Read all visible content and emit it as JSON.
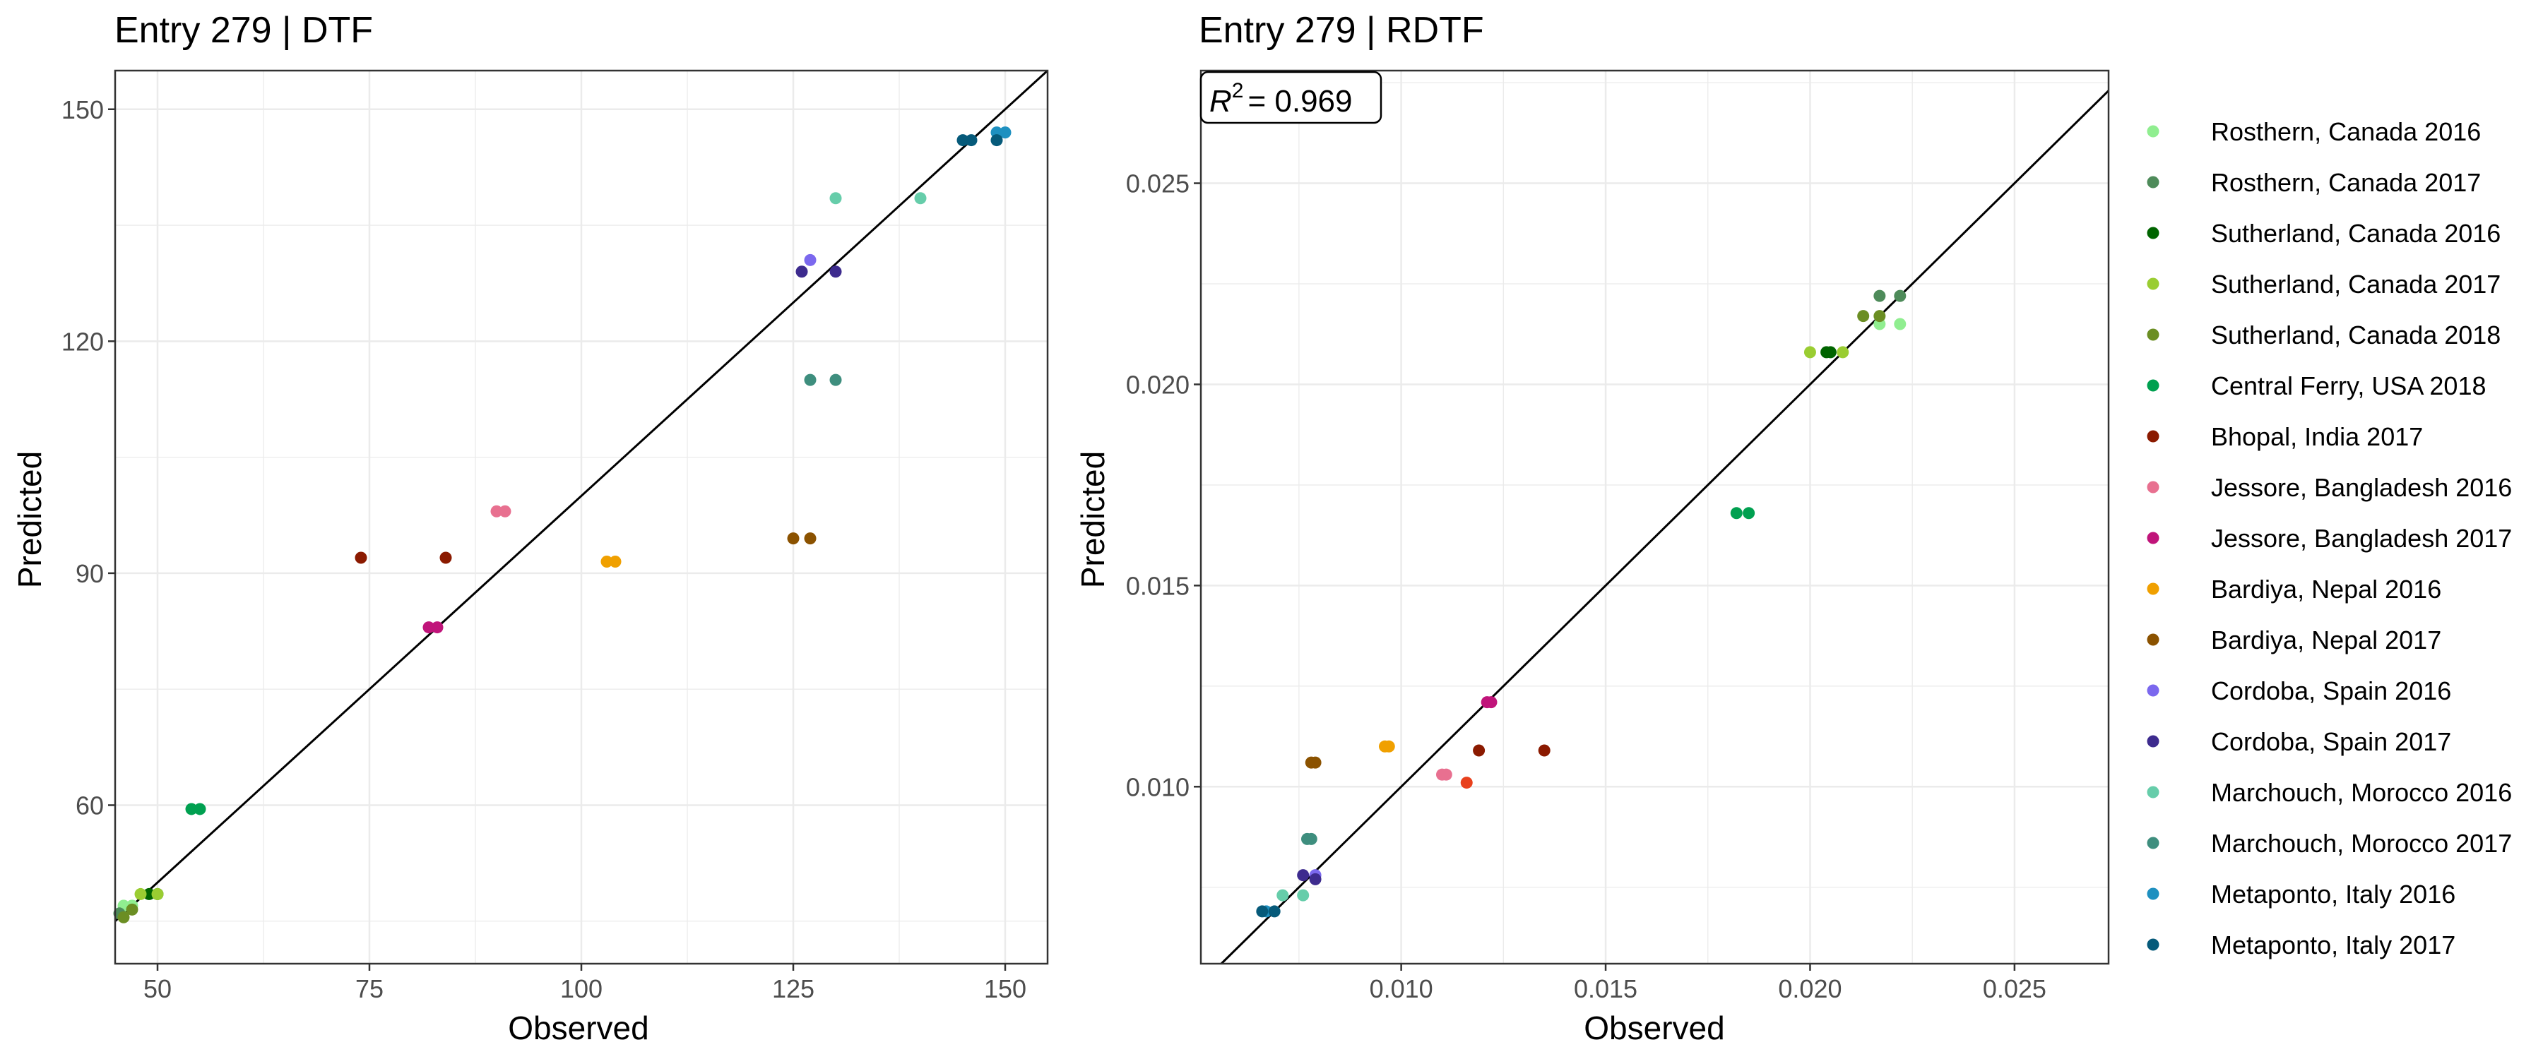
{
  "colors": {
    "series": [
      "#90EE90",
      "#4E8B5A",
      "#006400",
      "#9ACD32",
      "#6B8E23",
      "#00A050",
      "#8B1A00",
      "#E87090",
      "#C0147A",
      "#F0A000",
      "#8B5200",
      "#7B68EE",
      "#3D2B8E",
      "#66CDAA",
      "#3E8E7E",
      "#1E90C0",
      "#065A7A"
    ],
    "extra_point": "#E8401C"
  },
  "chart_data": [
    {
      "type": "scatter",
      "title": "Entry 279 | DTF",
      "xlabel": "Observed",
      "ylabel": "Predicted",
      "xlim": [
        45,
        155
      ],
      "ylim": [
        39.5,
        155
      ],
      "xticks": [
        50,
        75,
        100,
        125,
        150
      ],
      "xtick_labels": [
        "50",
        "75",
        "100",
        "125",
        "150"
      ],
      "yticks": [
        60,
        90,
        120,
        150
      ],
      "ytick_labels": [
        "60",
        "90",
        "120",
        "150"
      ],
      "identity_line": true,
      "grid": true,
      "points": [
        {
          "s": 0,
          "x": 46,
          "y": 47
        },
        {
          "s": 0,
          "x": 47,
          "y": 47
        },
        {
          "s": 1,
          "x": 45.5,
          "y": 46
        },
        {
          "s": 2,
          "x": 49,
          "y": 48.5
        },
        {
          "s": 2,
          "x": 50,
          "y": 48.5
        },
        {
          "s": 3,
          "x": 48,
          "y": 48.5
        },
        {
          "s": 3,
          "x": 50,
          "y": 48.5
        },
        {
          "s": 4,
          "x": 46,
          "y": 45.5
        },
        {
          "s": 4,
          "x": 47,
          "y": 46.5
        },
        {
          "s": 5,
          "x": 54,
          "y": 59.5
        },
        {
          "s": 5,
          "x": 55,
          "y": 59.5
        },
        {
          "s": 6,
          "x": 74,
          "y": 92
        },
        {
          "s": 6,
          "x": 84,
          "y": 92
        },
        {
          "s": 7,
          "x": 90,
          "y": 98
        },
        {
          "s": 7,
          "x": 91,
          "y": 98
        },
        {
          "s": 8,
          "x": 82,
          "y": 83
        },
        {
          "s": 8,
          "x": 83,
          "y": 83
        },
        {
          "s": 9,
          "x": 103,
          "y": 91.5
        },
        {
          "s": 9,
          "x": 104,
          "y": 91.5
        },
        {
          "s": 10,
          "x": 125,
          "y": 94.5
        },
        {
          "s": 10,
          "x": 127,
          "y": 94.5
        },
        {
          "s": 11,
          "x": 127,
          "y": 130.5
        },
        {
          "s": 12,
          "x": 126,
          "y": 129
        },
        {
          "s": 12,
          "x": 130,
          "y": 129
        },
        {
          "s": 13,
          "x": 130,
          "y": 138.5
        },
        {
          "s": 13,
          "x": 140,
          "y": 138.5
        },
        {
          "s": 14,
          "x": 127,
          "y": 115
        },
        {
          "s": 14,
          "x": 130,
          "y": 115
        },
        {
          "s": 15,
          "x": 149,
          "y": 147
        },
        {
          "s": 15,
          "x": 150,
          "y": 147
        },
        {
          "s": 16,
          "x": 145,
          "y": 146
        },
        {
          "s": 16,
          "x": 146,
          "y": 146
        },
        {
          "s": 16,
          "x": 149,
          "y": 146
        }
      ]
    },
    {
      "type": "scatter",
      "title": "Entry 279 | RDTF",
      "xlabel": "Observed",
      "ylabel": "Predicted",
      "xlim": [
        0.0051,
        0.0273
      ],
      "ylim": [
        0.0056,
        0.0278
      ],
      "xticks": [
        0.01,
        0.015,
        0.02,
        0.025
      ],
      "xtick_labels": [
        "0.010",
        "0.015",
        "0.020",
        "0.025"
      ],
      "yticks": [
        0.01,
        0.015,
        0.02,
        0.025
      ],
      "ytick_labels": [
        "0.010",
        "0.015",
        "0.020",
        "0.025"
      ],
      "identity_line": true,
      "grid": true,
      "annotation": {
        "r_symbol": "R",
        "r_exponent": "2",
        "r_value": "= 0.969"
      },
      "points": [
        {
          "s": 0,
          "x": 0.0217,
          "y": 0.0215
        },
        {
          "s": 0,
          "x": 0.0222,
          "y": 0.0215
        },
        {
          "s": 1,
          "x": 0.0217,
          "y": 0.0222
        },
        {
          "s": 1,
          "x": 0.0222,
          "y": 0.0222
        },
        {
          "s": 2,
          "x": 0.0204,
          "y": 0.0208
        },
        {
          "s": 2,
          "x": 0.0205,
          "y": 0.0208
        },
        {
          "s": 3,
          "x": 0.02,
          "y": 0.0208
        },
        {
          "s": 3,
          "x": 0.0208,
          "y": 0.0208
        },
        {
          "s": 4,
          "x": 0.0213,
          "y": 0.0217
        },
        {
          "s": 4,
          "x": 0.0217,
          "y": 0.0217
        },
        {
          "s": 5,
          "x": 0.0182,
          "y": 0.0168
        },
        {
          "s": 5,
          "x": 0.0185,
          "y": 0.0168
        },
        {
          "s": 6,
          "x": 0.0119,
          "y": 0.0109
        },
        {
          "s": 6,
          "x": 0.0135,
          "y": 0.0109
        },
        {
          "s": 7,
          "x": 0.011,
          "y": 0.0103
        },
        {
          "s": 7,
          "x": 0.0111,
          "y": 0.0103
        },
        {
          "s": 8,
          "x": 0.0121,
          "y": 0.0121
        },
        {
          "s": 8,
          "x": 0.0122,
          "y": 0.0121
        },
        {
          "s": 9,
          "x": 0.0096,
          "y": 0.011
        },
        {
          "s": 9,
          "x": 0.0097,
          "y": 0.011
        },
        {
          "s": 10,
          "x": 0.0078,
          "y": 0.0106
        },
        {
          "s": 10,
          "x": 0.0079,
          "y": 0.0106
        },
        {
          "s": 11,
          "x": 0.0079,
          "y": 0.0078
        },
        {
          "s": 12,
          "x": 0.0076,
          "y": 0.0078
        },
        {
          "s": 12,
          "x": 0.0079,
          "y": 0.0077
        },
        {
          "s": 13,
          "x": 0.0071,
          "y": 0.0073
        },
        {
          "s": 13,
          "x": 0.0076,
          "y": 0.0073
        },
        {
          "s": 14,
          "x": 0.0077,
          "y": 0.0087
        },
        {
          "s": 14,
          "x": 0.0078,
          "y": 0.0087
        },
        {
          "s": 15,
          "x": 0.0067,
          "y": 0.0069
        },
        {
          "s": 16,
          "x": 0.0066,
          "y": 0.0069
        },
        {
          "s": 16,
          "x": 0.0069,
          "y": 0.0069
        },
        {
          "s": -1,
          "x": 0.0116,
          "y": 0.0101
        }
      ]
    }
  ],
  "legend": {
    "position": "right",
    "entries": [
      "Rosthern, Canada 2016",
      "Rosthern, Canada 2017",
      "Sutherland, Canada 2016",
      "Sutherland, Canada 2017",
      "Sutherland, Canada 2018",
      "Central Ferry, USA 2018",
      "Bhopal, India 2017",
      "Jessore, Bangladesh 2016",
      "Jessore, Bangladesh 2017",
      "Bardiya, Nepal 2016",
      "Bardiya, Nepal 2017",
      "Cordoba, Spain 2016",
      "Cordoba, Spain 2017",
      "Marchouch, Morocco 2016",
      "Marchouch, Morocco 2017",
      "Metaponto, Italy 2016",
      "Metaponto, Italy 2017"
    ]
  }
}
